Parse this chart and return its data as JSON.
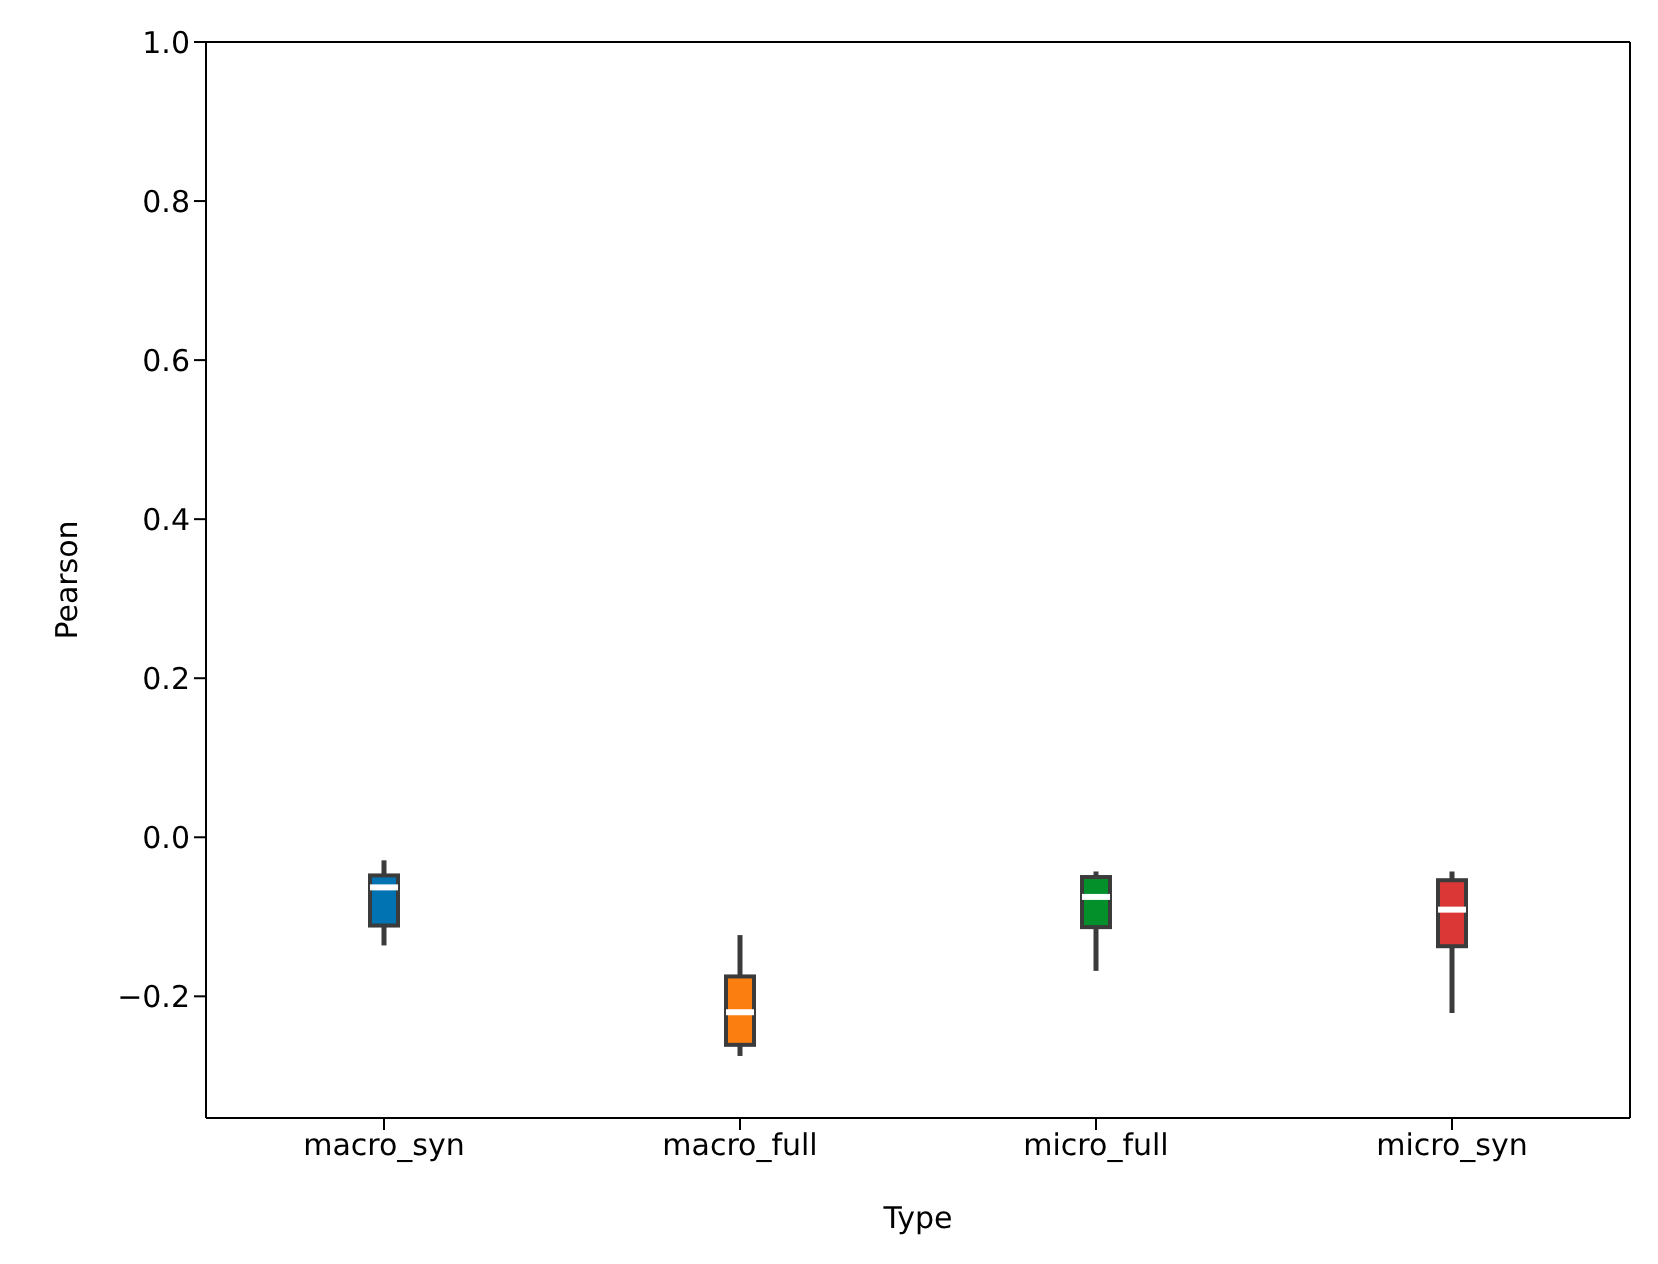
{
  "chart_data": {
    "type": "box",
    "xlabel": "Type",
    "ylabel": "Pearson",
    "categories": [
      "macro_syn",
      "macro_full",
      "micro_full",
      "micro_syn"
    ],
    "colors": [
      "#0173b2",
      "#fb7f10",
      "#03902a",
      "#dc3737"
    ],
    "boxes": [
      {
        "low": -0.136,
        "q1": -0.111,
        "median": -0.063,
        "q3": -0.048,
        "high": -0.029
      },
      {
        "low": -0.275,
        "q1": -0.261,
        "median": -0.22,
        "q3": -0.175,
        "high": -0.123
      },
      {
        "low": -0.168,
        "q1": -0.113,
        "median": -0.075,
        "q3": -0.05,
        "high": -0.043
      },
      {
        "low": -0.221,
        "q1": -0.137,
        "median": -0.091,
        "q3": -0.054,
        "high": -0.043
      }
    ],
    "ylim": [
      -0.353,
      1.0
    ],
    "yticks": [
      {
        "value": -0.2,
        "label": "−0.2"
      },
      {
        "value": 0,
        "label": "0.0"
      },
      {
        "value": 0.2,
        "label": "0.2"
      },
      {
        "value": 0.4,
        "label": "0.4"
      },
      {
        "value": 0.6,
        "label": "0.6"
      },
      {
        "value": 0.8,
        "label": "0.8"
      },
      {
        "value": 1,
        "label": "1.0"
      }
    ],
    "grid": false,
    "legend": false
  }
}
